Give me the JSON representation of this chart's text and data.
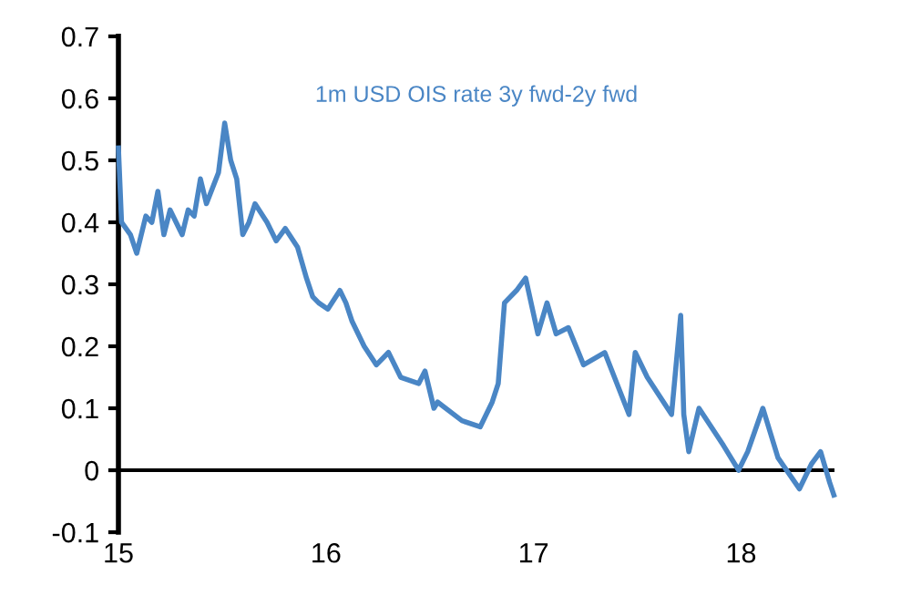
{
  "chart_data": {
    "type": "line",
    "x": [
      15.0,
      15.015,
      15.058,
      15.088,
      15.132,
      15.161,
      15.19,
      15.219,
      15.249,
      15.278,
      15.307,
      15.336,
      15.365,
      15.395,
      15.424,
      15.482,
      15.512,
      15.541,
      15.57,
      15.599,
      15.629,
      15.658,
      15.716,
      15.76,
      15.804,
      15.863,
      15.906,
      15.936,
      15.965,
      16.009,
      16.067,
      16.096,
      16.126,
      16.184,
      16.243,
      16.301,
      16.36,
      16.447,
      16.477,
      16.52,
      16.538,
      16.655,
      16.743,
      16.801,
      16.83,
      16.86,
      16.918,
      16.962,
      17.021,
      17.065,
      17.109,
      17.168,
      17.241,
      17.343,
      17.46,
      17.49,
      17.548,
      17.665,
      17.709,
      17.724,
      17.748,
      17.797,
      17.915,
      17.988,
      18.032,
      18.105,
      18.178,
      18.281,
      18.339,
      18.383,
      18.427,
      18.447
    ],
    "series": [
      {
        "name": "1m USD OIS rate 3y fwd-2y fwd",
        "color": "#4a86c5",
        "values": [
          0.52,
          0.4,
          0.38,
          0.35,
          0.41,
          0.4,
          0.45,
          0.38,
          0.42,
          0.4,
          0.38,
          0.42,
          0.41,
          0.47,
          0.43,
          0.48,
          0.56,
          0.5,
          0.47,
          0.38,
          0.4,
          0.43,
          0.4,
          0.37,
          0.39,
          0.36,
          0.31,
          0.28,
          0.27,
          0.26,
          0.29,
          0.27,
          0.24,
          0.2,
          0.17,
          0.19,
          0.15,
          0.14,
          0.16,
          0.1,
          0.11,
          0.08,
          0.07,
          0.11,
          0.14,
          0.27,
          0.29,
          0.31,
          0.22,
          0.27,
          0.22,
          0.23,
          0.17,
          0.19,
          0.09,
          0.19,
          0.15,
          0.09,
          0.25,
          0.09,
          0.03,
          0.1,
          0.04,
          0.0,
          0.03,
          0.1,
          0.02,
          -0.03,
          0.01,
          0.03,
          -0.02,
          -0.04
        ]
      }
    ],
    "xlim": [
      15,
      18.45
    ],
    "ylim": [
      -0.1,
      0.7
    ],
    "xticks": [
      15,
      16,
      17,
      18
    ],
    "yticks": [
      -0.1,
      0,
      0.1,
      0.2,
      0.3,
      0.4,
      0.5,
      0.6,
      0.7
    ],
    "ref_lines": [
      {
        "axis": "y",
        "value": 0,
        "color": "#000000"
      }
    ],
    "legend": false
  }
}
